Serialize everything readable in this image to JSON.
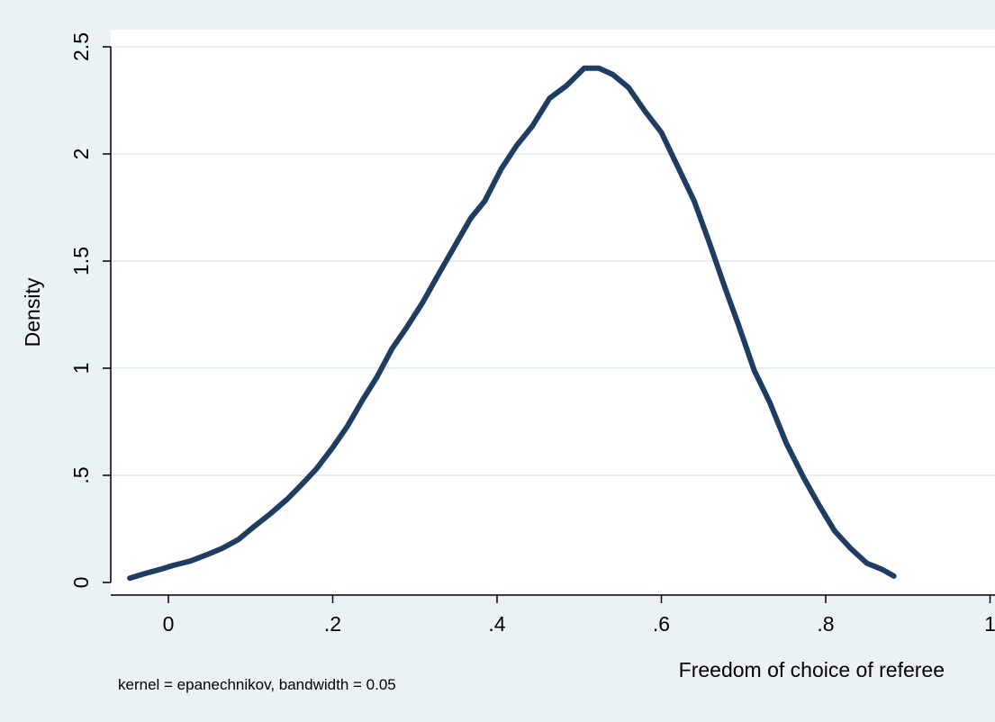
{
  "chart_data": {
    "type": "line",
    "title": "",
    "xlabel": "Freedom of choice of referee",
    "ylabel": "Density",
    "note": "kernel = epanechnikov, bandwidth = 0.05",
    "xlim": [
      -0.05,
      1.0
    ],
    "ylim": [
      0,
      2.5
    ],
    "xticks": [
      0,
      0.2,
      0.4,
      0.6,
      0.8,
      1.0
    ],
    "xtick_labels": [
      "0",
      ".2",
      ".4",
      ".6",
      ".8",
      "1"
    ],
    "yticks": [
      0,
      0.5,
      1.0,
      1.5,
      2.0,
      2.5
    ],
    "ytick_labels": [
      "0",
      ".5",
      "1",
      "1.5",
      "2",
      "2.5"
    ],
    "grid": "horizontal",
    "colors": {
      "line": "#1f3d63",
      "background": "#eaf2f3",
      "plot": "#ffffff",
      "grid": "#e5eef0"
    },
    "series": [
      {
        "x": [
          -0.047,
          -0.03,
          -0.011,
          0.006,
          0.027,
          0.047,
          0.066,
          0.085,
          0.104,
          0.124,
          0.145,
          0.163,
          0.18,
          0.2,
          0.218,
          0.236,
          0.254,
          0.272,
          0.29,
          0.31,
          0.329,
          0.347,
          0.368,
          0.385,
          0.405,
          0.424,
          0.443,
          0.464,
          0.485,
          0.506,
          0.524,
          0.541,
          0.56,
          0.58,
          0.6,
          0.62,
          0.64,
          0.659,
          0.677,
          0.694,
          0.713,
          0.732,
          0.752,
          0.773,
          0.792,
          0.811,
          0.83,
          0.85,
          0.869,
          0.883
        ],
        "y": [
          0.02,
          0.04,
          0.06,
          0.08,
          0.1,
          0.13,
          0.16,
          0.2,
          0.26,
          0.32,
          0.39,
          0.46,
          0.53,
          0.63,
          0.73,
          0.85,
          0.96,
          1.09,
          1.19,
          1.31,
          1.44,
          1.56,
          1.7,
          1.78,
          1.93,
          2.04,
          2.13,
          2.26,
          2.32,
          2.4,
          2.4,
          2.37,
          2.31,
          2.2,
          2.1,
          1.94,
          1.78,
          1.58,
          1.38,
          1.2,
          0.99,
          0.84,
          0.65,
          0.49,
          0.36,
          0.24,
          0.16,
          0.09,
          0.06,
          0.03
        ]
      }
    ]
  }
}
